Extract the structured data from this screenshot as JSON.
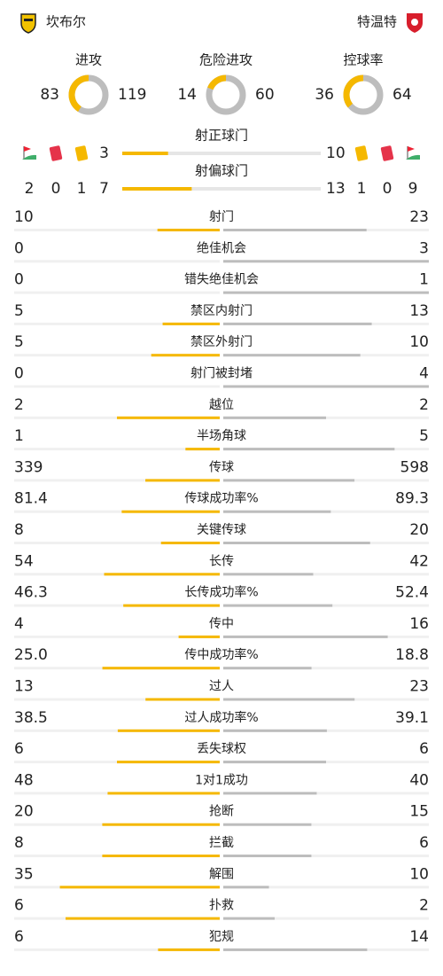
{
  "header": {
    "home": "坎布尔",
    "away": "特温特"
  },
  "donuts": [
    {
      "label": "进攻",
      "home": 83,
      "away": 119
    },
    {
      "label": "危险进攻",
      "home": 14,
      "away": 60
    },
    {
      "label": "控球率",
      "home": 36,
      "away": 64
    }
  ],
  "cards": {
    "home": {
      "corners": 2,
      "red": 0,
      "yellow": 1
    },
    "away": {
      "yellow": 1,
      "red": 0,
      "corners": 9
    }
  },
  "top_bars": [
    {
      "label": "射正球门",
      "home": 3,
      "away": 10
    },
    {
      "label": "射偏球门",
      "home": 7,
      "away": 13
    }
  ],
  "stats": [
    {
      "label": "射门",
      "home": 10,
      "away": 23
    },
    {
      "label": "绝佳机会",
      "home": 0,
      "away": 3
    },
    {
      "label": "错失绝佳机会",
      "home": 0,
      "away": 1
    },
    {
      "label": "禁区内射门",
      "home": 5,
      "away": 13
    },
    {
      "label": "禁区外射门",
      "home": 5,
      "away": 10
    },
    {
      "label": "射门被封堵",
      "home": 0,
      "away": 4
    },
    {
      "label": "越位",
      "home": 2,
      "away": 2
    },
    {
      "label": "半场角球",
      "home": 1,
      "away": 5
    },
    {
      "label": "传球",
      "home": 339,
      "away": 598
    },
    {
      "label": "传球成功率%",
      "home": 81.4,
      "away": 89.3
    },
    {
      "label": "关键传球",
      "home": 8,
      "away": 20
    },
    {
      "label": "长传",
      "home": 54,
      "away": 42
    },
    {
      "label": "长传成功率%",
      "home": 46.3,
      "away": 52.4
    },
    {
      "label": "传中",
      "home": 4,
      "away": 16
    },
    {
      "label": "传中成功率%",
      "home": 25.0,
      "home_label": "25.0",
      "away": 18.8
    },
    {
      "label": "过人",
      "home": 13,
      "away": 23
    },
    {
      "label": "过人成功率%",
      "home": 38.5,
      "away": 39.1
    },
    {
      "label": "丢失球权",
      "home": 6,
      "away": 6
    },
    {
      "label": "1对1成功",
      "home": 48,
      "away": 40
    },
    {
      "label": "抢断",
      "home": 20,
      "away": 15
    },
    {
      "label": "拦截",
      "home": 8,
      "away": 6
    },
    {
      "label": "解围",
      "home": 35,
      "away": 10
    },
    {
      "label": "扑救",
      "home": 6,
      "away": 2
    },
    {
      "label": "犯规",
      "home": 6,
      "away": 14
    }
  ]
}
